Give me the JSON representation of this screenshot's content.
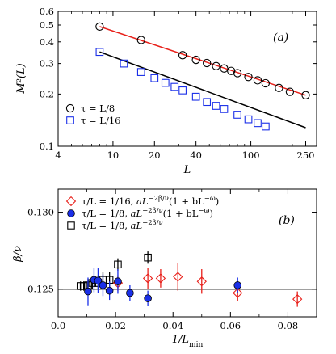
{
  "chart_data": [
    {
      "type": "scatter",
      "panel_label": "(a)",
      "xlabel": "L",
      "ylabel": "M²(L)",
      "xscale": "log",
      "yscale": "log",
      "xlim": [
        4,
        300
      ],
      "ylim": [
        0.1,
        0.6
      ],
      "x_ticks": [
        4,
        10,
        20,
        40,
        100,
        250
      ],
      "x_tick_labels": [
        "4",
        "10",
        "20",
        "40",
        "100",
        "250"
      ],
      "y_ticks": [
        0.1,
        0.2,
        0.3,
        0.4,
        0.5,
        0.6
      ],
      "y_tick_labels": [
        "0.1",
        "0.2",
        "0.3",
        "0.4",
        "0.5",
        "0.6"
      ],
      "legend_position": "bottom-left",
      "series": [
        {
          "name": "τ = L/8",
          "marker": "circle",
          "color": "#000000",
          "fit_color": "#e8201a",
          "x": [
            8,
            16,
            32,
            40,
            48,
            56,
            64,
            72,
            80,
            96,
            112,
            128,
            160,
            192,
            250
          ],
          "y": [
            0.49,
            0.41,
            0.335,
            0.315,
            0.302,
            0.29,
            0.281,
            0.272,
            0.264,
            0.251,
            0.24,
            0.231,
            0.217,
            0.206,
            0.197
          ]
        },
        {
          "name": "τ = L/16",
          "marker": "square",
          "color": "#1a2fe8",
          "fit_color": "#000000",
          "x": [
            8,
            12,
            16,
            20,
            24,
            28,
            32,
            40,
            48,
            56,
            64,
            80,
            96,
            112,
            128
          ],
          "y": [
            0.35,
            0.3,
            0.268,
            0.247,
            0.232,
            0.22,
            0.21,
            0.193,
            0.18,
            0.171,
            0.164,
            0.152,
            0.143,
            0.136,
            0.13
          ]
        }
      ],
      "fits": [
        {
          "series": "τ = L/8",
          "x": [
            8,
            250
          ],
          "y": [
            0.49,
            0.197
          ],
          "color": "#e8201a"
        },
        {
          "series": "τ = L/16",
          "x": [
            8,
            250
          ],
          "y": [
            0.35,
            0.128
          ],
          "color": "#000000"
        }
      ]
    },
    {
      "type": "scatter",
      "panel_label": "(b)",
      "xlabel": "1/L_min",
      "ylabel": "β/ν",
      "xlim": [
        0.0,
        0.09
      ],
      "ylim": [
        0.1232,
        0.1315
      ],
      "x_ticks": [
        0.0,
        0.02,
        0.04,
        0.06,
        0.08
      ],
      "x_tick_labels": [
        "0.0",
        "0.02",
        "0.04",
        "0.06",
        "0.08"
      ],
      "y_ticks": [
        0.125,
        0.13
      ],
      "y_tick_labels": [
        "0.125",
        "0.130"
      ],
      "reference_line": 0.125,
      "legend_position": "top-left",
      "series": [
        {
          "name": "τ/L = 1/16, aL^{−2β/ν}(1 + bL^{−ω})",
          "name_parts": [
            "τ/L = 1/16, ",
            "aL",
            "−2β/ν",
            "(1 + bL",
            "−ω",
            ")"
          ],
          "marker": "diamond-open",
          "color": "#e8201a",
          "x": [
            0.0208,
            0.03125,
            0.0357,
            0.0417,
            0.05,
            0.0625,
            0.0833
          ],
          "y": [
            0.1254,
            0.1257,
            0.1257,
            0.1258,
            0.1255,
            0.12475,
            0.12435
          ],
          "err": [
            0.0005,
            0.0007,
            0.0006,
            0.0009,
            0.0008,
            0.0005,
            0.0005
          ]
        },
        {
          "name": "τ/L = 1/8, aL^{−2β/ν}(1 + bL^{−ω})",
          "name_parts": [
            "τ/L = 1/8, ",
            "aL",
            "−2β/ν",
            "(1 + bL",
            "−ω",
            ")"
          ],
          "marker": "circle-filled",
          "color": "#1a2fe8",
          "x": [
            0.0104,
            0.0125,
            0.0139,
            0.0156,
            0.0179,
            0.0208,
            0.025,
            0.03125,
            0.0625
          ],
          "y": [
            0.12485,
            0.1256,
            0.12555,
            0.12525,
            0.1249,
            0.1255,
            0.12475,
            0.1244,
            0.12525
          ],
          "err": [
            0.0009,
            0.0008,
            0.0008,
            0.0007,
            0.0006,
            0.0008,
            0.0005,
            0.0005,
            0.0005
          ]
        },
        {
          "name": "τ/L = 1/8, aL^{−2β/ν}",
          "name_parts": [
            "τ/L = 1/8, ",
            "aL",
            "−2β/ν",
            "",
            "",
            ""
          ],
          "marker": "square-open",
          "color": "#000000",
          "x": [
            0.0078,
            0.0089,
            0.0104,
            0.0119,
            0.0139,
            0.0156,
            0.0179,
            0.0208,
            0.03125
          ],
          "y": [
            0.1252,
            0.1252,
            0.12525,
            0.1254,
            0.1254,
            0.1256,
            0.1256,
            0.1266,
            0.12705
          ],
          "err": [
            0.0003,
            0.0003,
            0.0004,
            0.0004,
            0.0004,
            0.0005,
            0.0005,
            0.0004,
            0.0004
          ]
        }
      ]
    }
  ]
}
